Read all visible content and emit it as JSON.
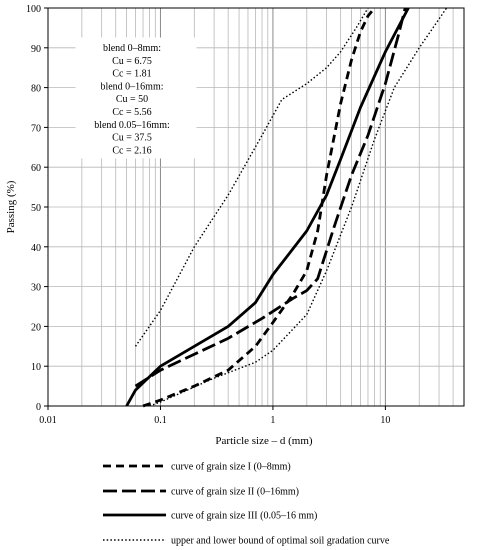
{
  "chart_data": {
    "type": "line",
    "title": "",
    "xlabel": "Particle size – d (mm)",
    "ylabel": "Passing (%)",
    "xscale": "log",
    "xlim": [
      0.01,
      50
    ],
    "ylim": [
      0,
      100
    ],
    "x_ticks": [
      "0.01",
      "0.1",
      "1",
      "10"
    ],
    "y_ticks": [
      "0",
      "10",
      "20",
      "30",
      "40",
      "50",
      "60",
      "70",
      "80",
      "90",
      "100"
    ],
    "grid": true,
    "legend_placement": "bottom",
    "annotation": [
      "blend 0–8mm:",
      "Cu = 6.75",
      "Cc = 1.81",
      "blend 0–16mm:",
      "Cu = 50",
      "Cc = 5.56",
      "blend 0.05–16mm:",
      "Cu = 37.5",
      "Cc = 2.16"
    ],
    "series": [
      {
        "name": "curve of grain size  I (0–8mm)",
        "style": "dashed",
        "points": [
          [
            0.07,
            0
          ],
          [
            0.1,
            1.5
          ],
          [
            0.2,
            5
          ],
          [
            0.4,
            9
          ],
          [
            0.7,
            15
          ],
          [
            1.0,
            21
          ],
          [
            1.5,
            28
          ],
          [
            2.0,
            34
          ],
          [
            2.5,
            44
          ],
          [
            3.0,
            58
          ],
          [
            4.0,
            76
          ],
          [
            5.0,
            87
          ],
          [
            6.0,
            94
          ],
          [
            7.0,
            98
          ],
          [
            8.0,
            100
          ]
        ]
      },
      {
        "name": "curve of grain size  II (0–16mm)",
        "style": "long-dash",
        "points": [
          [
            0.06,
            5
          ],
          [
            0.1,
            9
          ],
          [
            0.2,
            13
          ],
          [
            0.4,
            17
          ],
          [
            0.8,
            22
          ],
          [
            1.5,
            27
          ],
          [
            2.0,
            29
          ],
          [
            2.5,
            32
          ],
          [
            3.5,
            45
          ],
          [
            5.0,
            58
          ],
          [
            7.0,
            68
          ],
          [
            10.0,
            81
          ],
          [
            13.0,
            93
          ],
          [
            15.0,
            100
          ]
        ]
      },
      {
        "name": "curve of grain size  III (0.05–16 mm)",
        "style": "solid",
        "points": [
          [
            0.05,
            0
          ],
          [
            0.06,
            4
          ],
          [
            0.1,
            10
          ],
          [
            0.2,
            15
          ],
          [
            0.4,
            20
          ],
          [
            0.7,
            26
          ],
          [
            1.0,
            33
          ],
          [
            2.0,
            44
          ],
          [
            3.0,
            53
          ],
          [
            4.0,
            62
          ],
          [
            6.0,
            75
          ],
          [
            10.0,
            89
          ],
          [
            16.0,
            100
          ]
        ]
      },
      {
        "name": "upper and lower bound of optimal soil gradation curve",
        "style": "dotted",
        "group": "upper",
        "points": [
          [
            0.06,
            15
          ],
          [
            0.1,
            24
          ],
          [
            0.2,
            40
          ],
          [
            0.4,
            53
          ],
          [
            0.8,
            68
          ],
          [
            1.2,
            77
          ],
          [
            2.0,
            81
          ],
          [
            3.0,
            85
          ],
          [
            4.0,
            89
          ],
          [
            5.5,
            95
          ],
          [
            7.0,
            100
          ]
        ]
      },
      {
        "name": "upper and lower bound of optimal soil gradation curve",
        "style": "dotted",
        "group": "lower",
        "points": [
          [
            0.08,
            0
          ],
          [
            0.1,
            1
          ],
          [
            0.3,
            7
          ],
          [
            0.7,
            11
          ],
          [
            1.0,
            14
          ],
          [
            2.0,
            23
          ],
          [
            3.0,
            34
          ],
          [
            5.0,
            50
          ],
          [
            8.0,
            67
          ],
          [
            12.0,
            80
          ],
          [
            20.0,
            90
          ],
          [
            35.0,
            100
          ]
        ]
      }
    ]
  },
  "legend": [
    {
      "label": "curve of grain size  I (0–8mm)",
      "style": "dashed"
    },
    {
      "label": "curve of grain size  II (0–16mm)",
      "style": "long-dash"
    },
    {
      "label": "curve of grain size  III (0.05–16 mm)",
      "style": "solid"
    },
    {
      "label": "upper and lower bound of optimal soil gradation curve",
      "style": "dotted"
    }
  ]
}
